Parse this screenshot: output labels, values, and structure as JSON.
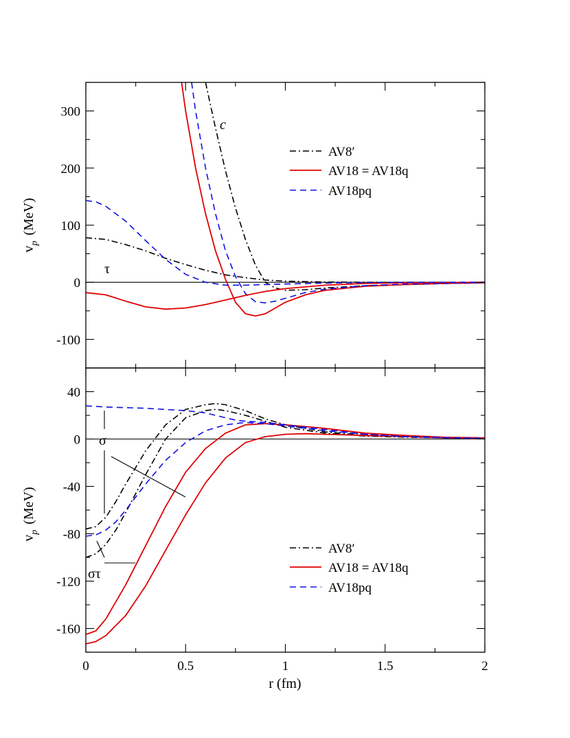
{
  "chart_data": [
    {
      "type": "line",
      "panel": "top",
      "ylabel": "v_p (MeV)",
      "ylabel_main": "v",
      "ylabel_sub": "p",
      "ylabel_unit": "(MeV)",
      "xlim": [
        0,
        2
      ],
      "ylim": [
        -150,
        350
      ],
      "yticks": [
        -100,
        0,
        100,
        200,
        300
      ],
      "ytick_labels": [
        "-100",
        "0",
        "100",
        "200",
        "300"
      ],
      "hline_zero": true,
      "annotations": [
        {
          "text": "c",
          "italic": true,
          "x": 0.7,
          "y": 275
        },
        {
          "text": "τ",
          "x": 0.12,
          "y": 22
        }
      ],
      "legend": [
        "AV8′",
        "AV18 = AV18q",
        "AV18pq"
      ],
      "legend_position": "top-right",
      "series": [
        {
          "name": "AV8′ c",
          "style": "dashdot",
          "color": "#000000",
          "x": [
            0.6,
            0.65,
            0.7,
            0.75,
            0.8,
            0.85,
            0.9,
            0.95,
            1.0,
            1.1,
            1.2,
            1.4,
            1.6,
            1.8,
            2.0
          ],
          "y": [
            350,
            270,
            195,
            130,
            75,
            30,
            0,
            -10,
            -14,
            -13,
            -10,
            -6,
            -4,
            -2,
            -1
          ]
        },
        {
          "name": "AV18 c",
          "style": "solid",
          "color": "#e00000",
          "x": [
            0.48,
            0.5,
            0.55,
            0.6,
            0.65,
            0.7,
            0.75,
            0.8,
            0.85,
            0.9,
            0.95,
            1.0,
            1.1,
            1.2,
            1.4,
            1.6,
            1.8,
            2.0
          ],
          "y": [
            350,
            300,
            200,
            120,
            55,
            5,
            -35,
            -55,
            -59,
            -55,
            -45,
            -35,
            -22,
            -14,
            -7,
            -4,
            -2,
            -1
          ]
        },
        {
          "name": "AV18pq c",
          "style": "dashed",
          "color": "#1010e0",
          "x": [
            0.53,
            0.55,
            0.6,
            0.65,
            0.7,
            0.75,
            0.8,
            0.85,
            0.9,
            0.95,
            1.0,
            1.1,
            1.2,
            1.4,
            1.6,
            1.8,
            2.0
          ],
          "y": [
            350,
            300,
            200,
            120,
            55,
            10,
            -20,
            -34,
            -36,
            -33,
            -28,
            -18,
            -12,
            -6,
            -3,
            -2,
            -1
          ]
        },
        {
          "name": "AV8′ τ",
          "style": "dashdot",
          "color": "#000000",
          "x": [
            0,
            0.1,
            0.2,
            0.3,
            0.4,
            0.5,
            0.6,
            0.7,
            0.8,
            0.9,
            1.0,
            1.2,
            1.4,
            1.6,
            2.0
          ],
          "y": [
            78,
            75,
            66,
            55,
            42,
            31,
            21,
            13,
            8,
            4,
            2,
            0.5,
            0,
            0,
            0
          ]
        },
        {
          "name": "AV18 τ",
          "style": "solid",
          "color": "#e00000",
          "x": [
            0,
            0.1,
            0.2,
            0.3,
            0.4,
            0.5,
            0.6,
            0.7,
            0.8,
            0.9,
            1.0,
            1.2,
            1.4,
            1.6,
            2.0
          ],
          "y": [
            -18,
            -22,
            -33,
            -43,
            -47,
            -45,
            -39,
            -31,
            -23,
            -16,
            -11,
            -5,
            -2,
            -1,
            0
          ]
        },
        {
          "name": "AV18pq τ",
          "style": "dashed",
          "color": "#1010e0",
          "x": [
            0,
            0.05,
            0.1,
            0.2,
            0.3,
            0.4,
            0.5,
            0.6,
            0.7,
            0.8,
            0.9,
            1.0,
            1.2,
            1.4,
            1.6,
            2.0
          ],
          "y": [
            143,
            141,
            133,
            107,
            73,
            40,
            14,
            0,
            -5,
            -5,
            -4,
            -3,
            -1.5,
            -0.5,
            0,
            0
          ]
        }
      ]
    },
    {
      "type": "line",
      "panel": "bottom",
      "xlabel": "r (fm)",
      "ylabel": "v_p (MeV)",
      "ylabel_main": "v",
      "ylabel_sub": "p",
      "ylabel_unit": "(MeV)",
      "xlim": [
        0,
        2
      ],
      "ylim": [
        -180,
        60
      ],
      "xticks": [
        0,
        0.5,
        1,
        1.5,
        2
      ],
      "xtick_labels": [
        "0",
        "0.5",
        "1",
        "1.5",
        "2"
      ],
      "yticks": [
        -160,
        -120,
        -80,
        -40,
        0,
        40
      ],
      "ytick_labels": [
        "-160",
        "-120",
        "-80",
        "-40",
        "0",
        "40"
      ],
      "hline_zero": true,
      "annotations": [
        {
          "text": "σ",
          "x": 0.12,
          "y": -10
        },
        {
          "text": "στ",
          "x": 0.08,
          "y": -97
        }
      ],
      "legend": [
        "AV8′",
        "AV18 = AV18q",
        "AV18pq"
      ],
      "legend_position": "bottom-right",
      "series": [
        {
          "name": "AV8′ σ",
          "style": "dashdot",
          "color": "#000000",
          "x": [
            0,
            0.05,
            0.1,
            0.15,
            0.2,
            0.3,
            0.4,
            0.5,
            0.6,
            0.65,
            0.7,
            0.8,
            0.9,
            1.0,
            1.2,
            1.4,
            1.6,
            1.8,
            2.0
          ],
          "y": [
            -76,
            -74,
            -66,
            -53,
            -38,
            -10,
            12,
            25,
            29,
            30,
            29,
            24,
            17,
            12,
            6,
            3,
            2,
            1,
            0.5
          ]
        },
        {
          "name": "AV8′ στ",
          "style": "dashdot",
          "color": "#000000",
          "x": [
            0,
            0.05,
            0.1,
            0.15,
            0.2,
            0.3,
            0.4,
            0.5,
            0.6,
            0.65,
            0.7,
            0.8,
            0.9,
            1.0,
            1.2,
            1.4,
            1.6,
            1.8,
            2.0
          ],
          "y": [
            -100,
            -97,
            -89,
            -77,
            -62,
            -30,
            0,
            18,
            24,
            25,
            24,
            20,
            15,
            10,
            5,
            2.5,
            1.5,
            1,
            0.5
          ]
        },
        {
          "name": "AV18 σ",
          "style": "solid",
          "color": "#e00000",
          "x": [
            0,
            0.05,
            0.1,
            0.2,
            0.3,
            0.4,
            0.5,
            0.6,
            0.7,
            0.8,
            0.9,
            1.0,
            1.2,
            1.4,
            1.6,
            1.8,
            2.0
          ],
          "y": [
            -165,
            -162,
            -152,
            -123,
            -90,
            -57,
            -28,
            -8,
            5,
            12,
            13,
            12,
            9,
            5,
            3,
            1.5,
            1
          ]
        },
        {
          "name": "AV18 στ",
          "style": "solid",
          "color": "#e00000",
          "x": [
            0,
            0.05,
            0.1,
            0.2,
            0.3,
            0.4,
            0.5,
            0.6,
            0.7,
            0.8,
            0.9,
            1.0,
            1.1,
            1.2,
            1.4,
            1.6,
            1.8,
            2.0
          ],
          "y": [
            -173,
            -171,
            -166,
            -149,
            -124,
            -94,
            -64,
            -37,
            -16,
            -3,
            2,
            4,
            4.5,
            4,
            3,
            2,
            1,
            0.5
          ]
        },
        {
          "name": "AV18pq σ",
          "style": "dashed",
          "color": "#1010e0",
          "x": [
            0,
            0.1,
            0.2,
            0.3,
            0.4,
            0.5,
            0.55,
            0.6,
            0.65,
            0.7,
            0.75,
            0.8,
            0.9,
            1.0,
            1.2,
            1.4,
            1.6,
            2.0
          ],
          "y": [
            28,
            27,
            26.5,
            26,
            25,
            24,
            23,
            22,
            20,
            18,
            16,
            15,
            14,
            12,
            8,
            4,
            2,
            0.5
          ]
        },
        {
          "name": "AV18pq στ",
          "style": "dashed",
          "color": "#1010e0",
          "x": [
            0,
            0.05,
            0.1,
            0.15,
            0.2,
            0.3,
            0.4,
            0.5,
            0.6,
            0.7,
            0.8,
            0.9,
            1.0,
            1.2,
            1.4,
            1.6,
            1.8,
            2.0
          ],
          "y": [
            -82,
            -81,
            -77,
            -70,
            -60,
            -38,
            -18,
            -3,
            7,
            12,
            14,
            13,
            11,
            7,
            4,
            2,
            1,
            0.5
          ]
        }
      ]
    }
  ]
}
